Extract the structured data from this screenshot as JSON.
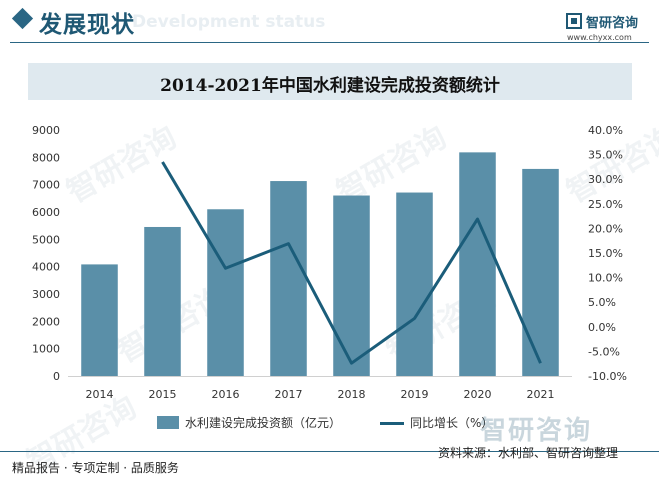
{
  "header": {
    "section_title": "发展现状",
    "section_title_en": "Development status",
    "logo_name": "智研咨询",
    "logo_url": "www.chyxx.com"
  },
  "watermark_text": "智研咨询",
  "chart_data": {
    "type": "bar",
    "title": "2014-2021年中国水利建设完成投资额统计",
    "categories": [
      "2014",
      "2015",
      "2016",
      "2017",
      "2018",
      "2019",
      "2020",
      "2021"
    ],
    "series": [
      {
        "name": "水利建设完成投资额（亿元）",
        "type": "bar",
        "axis": "left",
        "values": [
          4083,
          5452,
          6100,
          7132,
          6603,
          6712,
          8182,
          7576
        ]
      },
      {
        "name": "同比增长（%）",
        "type": "line",
        "axis": "right",
        "values": [
          null,
          33.5,
          11.9,
          16.9,
          -7.4,
          1.7,
          21.9,
          -7.4
        ]
      }
    ],
    "left_axis": {
      "min": 0,
      "max": 9000,
      "step": 1000,
      "ticks": [
        "0",
        "1000",
        "2000",
        "3000",
        "4000",
        "5000",
        "6000",
        "7000",
        "8000",
        "9000"
      ]
    },
    "right_axis": {
      "min": -10,
      "max": 40,
      "step": 5,
      "ticks": [
        "-10.0%",
        "-5.0%",
        "0.0%",
        "5.0%",
        "10.0%",
        "15.0%",
        "20.0%",
        "25.0%",
        "30.0%",
        "35.0%",
        "40.0%"
      ]
    },
    "colors": {
      "bar": "#5a8fa8",
      "line": "#1b5d7a"
    },
    "legend_position": "bottom",
    "grid": false
  },
  "footer": {
    "left": "精品报告 · 专项定制 · 品质服务",
    "source": "资料来源：水利部、智研咨询整理"
  }
}
